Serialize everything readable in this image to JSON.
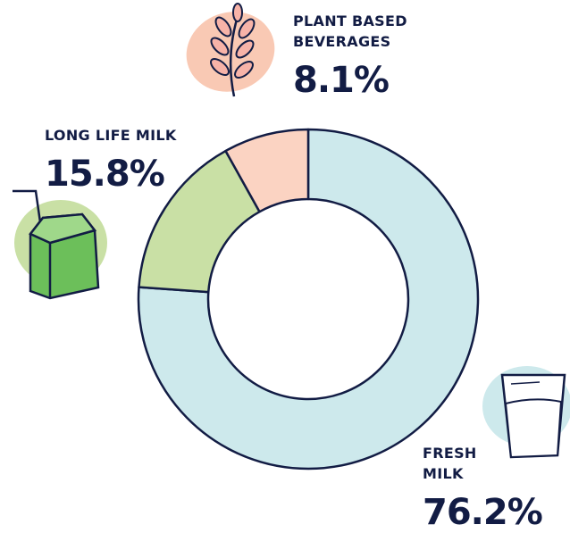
{
  "chart_data": {
    "type": "pie",
    "categories": [
      "FRESH MILK",
      "LONG LIFE MILK",
      "PLANT BASED BEVERAGES"
    ],
    "values": [
      76.2,
      15.8,
      8.1
    ],
    "value_labels": [
      "76.2%",
      "15.8%",
      "8.1%"
    ],
    "colors": [
      "#cde9ec",
      "#c9e0a5",
      "#fbd3c2"
    ]
  }
}
